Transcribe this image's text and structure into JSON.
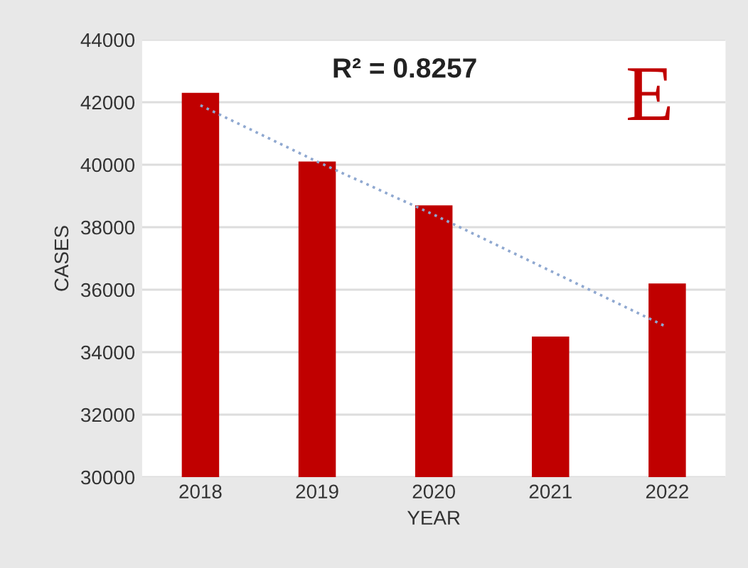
{
  "chart_data": {
    "type": "bar",
    "xlabel": "YEAR",
    "ylabel": "CASES",
    "categories": [
      "2018",
      "2019",
      "2020",
      "2021",
      "2022"
    ],
    "series": [
      {
        "color": "#c00000",
        "values": [
          42300,
          40100,
          38700,
          34500,
          36200
        ]
      },
      {
        "type": "line",
        "color": "#8fa8d0",
        "line_style": "dotted",
        "values": [
          41900,
          40100,
          38400,
          36600,
          34800
        ]
      }
    ],
    "ylim": [
      30000,
      44000
    ],
    "yticks": [
      30000,
      32000,
      34000,
      36000,
      38000,
      40000,
      42000,
      44000
    ],
    "grid": "y",
    "legend": false,
    "annotations": [
      "R² = 0.8257",
      "E"
    ]
  }
}
